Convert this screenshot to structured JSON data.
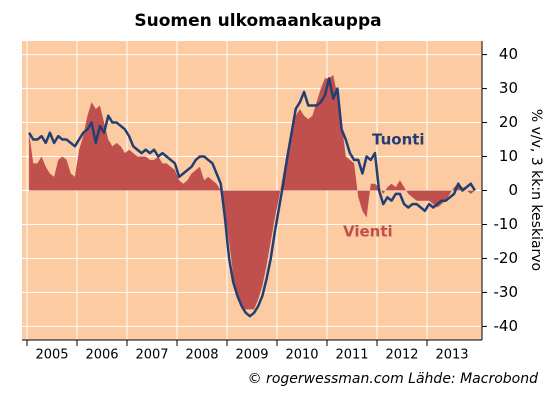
{
  "chart_data": {
    "type": "line",
    "title": "Suomen ulkomaankauppa",
    "y_label": "% v/v, 3 kk:n keskiarvo",
    "footer": "© rogerwessman.com Lähde: Macrobond",
    "categories": [
      "2005",
      null,
      null,
      null,
      null,
      null,
      null,
      null,
      null,
      null,
      null,
      null,
      "2006",
      null,
      null,
      null,
      null,
      null,
      null,
      null,
      null,
      null,
      null,
      null,
      "2007",
      null,
      null,
      null,
      null,
      null,
      null,
      null,
      null,
      null,
      null,
      null,
      "2008",
      null,
      null,
      null,
      null,
      null,
      null,
      null,
      null,
      null,
      null,
      null,
      "2009",
      null,
      null,
      null,
      null,
      null,
      null,
      null,
      null,
      null,
      null,
      null,
      "2010",
      null,
      null,
      null,
      null,
      null,
      null,
      null,
      null,
      null,
      null,
      null,
      "2011",
      null,
      null,
      null,
      null,
      null,
      null,
      null,
      null,
      null,
      null,
      null,
      "2012",
      null,
      null,
      null,
      null,
      null,
      null,
      null,
      null,
      null,
      null,
      null,
      "2013",
      null,
      null,
      null,
      null,
      null,
      null,
      null,
      null,
      null,
      null,
      null
    ],
    "series": [
      {
        "name": "Tuonti",
        "color": "#213f73",
        "fill": false,
        "values": [
          17,
          15,
          15,
          16,
          14,
          17,
          14,
          16,
          15,
          15,
          14,
          13,
          15,
          17,
          18,
          20,
          14,
          19,
          17,
          22,
          20,
          20,
          19,
          18,
          16,
          13,
          12,
          11,
          12,
          11,
          12,
          10,
          11,
          10,
          9,
          8,
          4,
          5,
          6,
          7,
          9,
          10,
          10,
          9,
          8,
          5,
          2,
          -8,
          -20,
          -27,
          -31,
          -34,
          -36,
          -37,
          -36,
          -34,
          -31,
          -26,
          -20,
          -12,
          -5,
          2,
          10,
          17,
          24,
          26,
          29,
          25,
          25,
          25,
          26,
          28,
          33,
          27,
          30,
          18,
          15,
          11,
          9,
          9,
          5,
          10,
          9,
          11,
          0,
          -4,
          -2,
          -3,
          -1,
          -1,
          -4,
          -5,
          -4,
          -4,
          -5,
          -6,
          -4,
          -5,
          -4,
          -3,
          -3,
          -2,
          -1,
          2,
          0,
          1,
          2,
          0
        ]
      },
      {
        "name": "Vienti",
        "color": "#c0504d",
        "fill": true,
        "values": [
          17,
          8,
          8,
          10,
          7,
          5,
          4,
          9,
          10,
          9,
          5,
          4,
          12,
          16,
          22,
          26,
          24,
          25,
          20,
          15,
          13,
          14,
          13,
          11,
          12,
          11,
          10,
          10,
          10,
          9,
          9,
          10,
          8,
          8,
          7,
          6,
          3,
          2,
          3,
          5,
          6,
          7,
          3,
          4,
          3,
          2,
          0,
          -6,
          -15,
          -25,
          -32,
          -34,
          -35,
          -35,
          -35,
          -32,
          -28,
          -22,
          -15,
          -8,
          -2,
          5,
          12,
          18,
          22,
          24,
          22,
          21,
          22,
          26,
          30,
          33,
          33,
          34,
          28,
          20,
          10,
          9,
          8,
          -2,
          -6,
          -8,
          2,
          2,
          1,
          -1,
          1,
          2,
          1,
          3,
          1,
          -1,
          -2,
          -3,
          -3,
          -3,
          -3,
          -4,
          -5,
          -4,
          -3,
          -1,
          1,
          2,
          1,
          0,
          -1,
          0
        ]
      }
    ],
    "ylim": [
      -44,
      44
    ],
    "yticks": [
      40,
      30,
      20,
      10,
      0,
      -10,
      -20,
      -30,
      -40
    ],
    "grid": true,
    "background": "#fccba2"
  }
}
